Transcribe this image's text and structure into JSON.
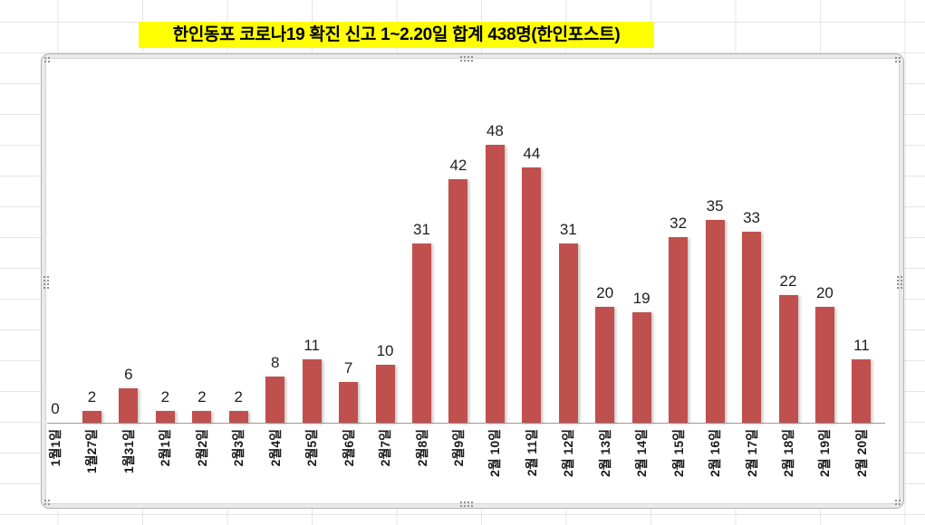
{
  "title": {
    "text": "한인동포 코로나19 확진 신고 1~2.20일 합계 438명(한인포스트)",
    "highlight_color": "#FFFF00",
    "text_color": "#000000"
  },
  "chart_data": {
    "type": "bar",
    "title": "한인동포 코로나19 확진 신고 1~2.20일 합계 438명(한인포스트)",
    "categories": [
      "1월1일",
      "1월27일",
      "1월31일",
      "2월1일",
      "2월2일",
      "2월3일",
      "2월4일",
      "2월5일",
      "2월6일",
      "2월7일",
      "2월8일",
      "2월9일",
      "2월 10일",
      "2월 11일",
      "2월 12일",
      "2월 13일",
      "2월 14일",
      "2월 15일",
      "2월 16일",
      "2월 17일",
      "2월 18일",
      "2월 19일",
      "2월 20일"
    ],
    "values": [
      0,
      2,
      6,
      2,
      2,
      2,
      8,
      11,
      7,
      10,
      31,
      42,
      48,
      44,
      31,
      20,
      19,
      32,
      35,
      33,
      22,
      20,
      11
    ],
    "total": 438,
    "bar_color": "#C0504D",
    "data_labels": true,
    "xlabel": "",
    "ylabel": "",
    "ylim": [
      0,
      50
    ],
    "legend": "none",
    "gridlines": false,
    "x_label_rotation": -90
  },
  "spreadsheet": {
    "gridline_color": "#E3E5E9",
    "background": "#FFFFFF"
  },
  "chart_object": {
    "selected": true,
    "frame_color": "#B3B3B3",
    "handle_count": 8
  }
}
